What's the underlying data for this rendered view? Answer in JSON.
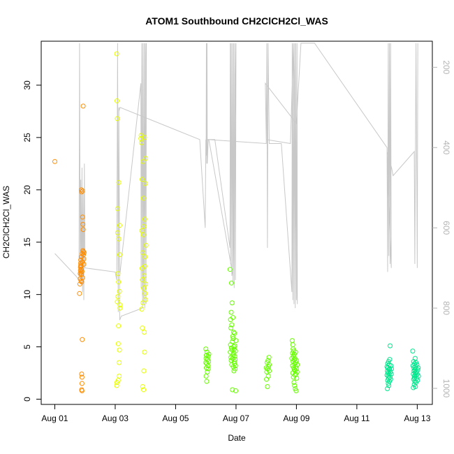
{
  "chart_data": {
    "type": "scatter",
    "title": "ATOM1 Southbound CH2ClCH2Cl_WAS",
    "xlabel": "Date",
    "ylabel": "CH2ClCH2Cl_WAS",
    "x_tick_labels": [
      "Aug 01",
      "Aug 03",
      "Aug 05",
      "Aug 07",
      "Aug 09",
      "Aug 11",
      "Aug 13"
    ],
    "x_tick_values": [
      1,
      3,
      5,
      7,
      9,
      11,
      13
    ],
    "xlim": [
      0.55,
      13.5
    ],
    "ylim": [
      -0.5,
      34.2
    ],
    "y_ticks": [
      0,
      5,
      10,
      15,
      20,
      25,
      30
    ],
    "y2_axis": {
      "ticks": [
        200,
        400,
        600,
        800,
        1000
      ],
      "lim": [
        1040,
        135
      ],
      "color": "#b4b4b4"
    },
    "series": [
      {
        "color": "#ff8c00",
        "x": [
          1.0,
          1.82,
          1.83,
          1.84,
          1.84,
          1.85,
          1.85,
          1.86,
          1.86,
          1.86,
          1.87,
          1.87,
          1.87,
          1.88,
          1.88,
          1.88,
          1.88,
          1.89,
          1.89,
          1.89,
          1.89,
          1.9,
          1.9,
          1.9,
          1.9,
          1.91,
          1.91,
          1.91,
          1.92,
          1.92,
          1.92,
          1.93,
          1.93,
          1.94,
          1.94,
          1.95,
          1.95,
          1.96,
          1.96,
          1.97
        ],
        "y": [
          22.7,
          10.1,
          11.0,
          11.5,
          12.0,
          12.3,
          12.6,
          12.8,
          13.0,
          13.3,
          11.3,
          12.1,
          12.7,
          11.9,
          12.4,
          13.6,
          20.0,
          0.9,
          2.4,
          19.8,
          11.2,
          0.8,
          1.5,
          2.1,
          12.2,
          13.1,
          13.9,
          5.7,
          17.4,
          19.9,
          11.6,
          14.2,
          16.7,
          16.2,
          28.0,
          13.8,
          14.1,
          12.9,
          13.4,
          14.0
        ]
      },
      {
        "color": "#e6ff00",
        "x": [
          3.05,
          3.05,
          3.06,
          3.06,
          3.07,
          3.07,
          3.08,
          3.08,
          3.09,
          3.09,
          3.1,
          3.1,
          3.11,
          3.11,
          3.12,
          3.12,
          3.13,
          3.13,
          3.14,
          3.14,
          3.15,
          3.15,
          3.16,
          3.16,
          3.85,
          3.86,
          3.87,
          3.88,
          3.88,
          3.89,
          3.89,
          3.9,
          3.9,
          3.91,
          3.91,
          3.92,
          3.92,
          3.93,
          3.93,
          3.94,
          3.94,
          3.95,
          3.95,
          3.96,
          3.96,
          3.97,
          3.97,
          3.98,
          3.98,
          3.99,
          3.99,
          4.0,
          4.0,
          4.01,
          4.01,
          4.02
        ],
        "y": [
          33.0,
          1.3,
          28.5,
          1.6,
          26.8,
          9.3,
          15.9,
          18.2,
          9.8,
          12.0,
          1.8,
          5.3,
          7.0,
          11.2,
          15.3,
          20.7,
          2.2,
          3.5,
          4.7,
          10.3,
          13.8,
          16.6,
          9.0,
          8.7,
          24.9,
          25.2,
          24.5,
          8.6,
          16.1,
          21.0,
          12.5,
          6.8,
          11.4,
          1.2,
          14.0,
          22.7,
          9.2,
          15.7,
          19.2,
          0.9,
          10.6,
          2.7,
          16.5,
          6.4,
          11.8,
          25.0,
          4.5,
          17.2,
          12.7,
          10.1,
          13.6,
          9.5,
          20.6,
          23.0,
          11.0,
          14.7
        ]
      },
      {
        "color": "#66ff00",
        "x": [
          6.0,
          6.0,
          6.01,
          6.01,
          6.02,
          6.02,
          6.03,
          6.03,
          6.04,
          6.05,
          6.06,
          6.07,
          6.08,
          6.08,
          6.09,
          6.1,
          6.8,
          6.81,
          6.82,
          6.82,
          6.83,
          6.83,
          6.84,
          6.84,
          6.85,
          6.85,
          6.86,
          6.86,
          6.87,
          6.87,
          6.88,
          6.88,
          6.89,
          6.89,
          6.9,
          6.9,
          6.91,
          6.91,
          6.92,
          6.92,
          6.93,
          6.93,
          6.94,
          6.94,
          6.95,
          6.95,
          6.96,
          6.96,
          6.97,
          6.97,
          6.98,
          6.98,
          6.99,
          7.0,
          8.0,
          8.01,
          8.02,
          8.03,
          8.04,
          8.05,
          8.06,
          8.07,
          8.08,
          8.09,
          8.1,
          8.1,
          8.85,
          8.86,
          8.87,
          8.87,
          8.88,
          8.88,
          8.89,
          8.89,
          8.9,
          8.9,
          8.91,
          8.91,
          8.92,
          8.92,
          8.93,
          8.93,
          8.94,
          8.94,
          8.95,
          8.95,
          8.96,
          8.96,
          8.97,
          8.97,
          8.98,
          8.98,
          8.99,
          9.0,
          9.0,
          9.01,
          9.02,
          9.03
        ],
        "y": [
          4.8,
          3.5,
          2.2,
          3.9,
          4.2,
          3.0,
          1.7,
          3.4,
          4.5,
          2.6,
          3.8,
          3.2,
          4.1,
          2.9,
          3.6,
          4.3,
          12.4,
          4.5,
          7.6,
          5.2,
          6.8,
          4.0,
          8.3,
          3.7,
          11.1,
          4.9,
          7.1,
          3.3,
          9.2,
          4.7,
          0.9,
          5.5,
          6.0,
          3.9,
          7.8,
          4.2,
          5.8,
          3.1,
          6.4,
          4.4,
          2.7,
          5.0,
          3.6,
          4.8,
          6.3,
          3.4,
          5.1,
          4.1,
          2.9,
          3.8,
          4.6,
          3.2,
          0.8,
          5.6,
          3.0,
          1.9,
          2.6,
          3.5,
          1.2,
          2.9,
          3.7,
          2.2,
          3.1,
          4.0,
          2.7,
          3.3,
          3.9,
          5.6,
          4.4,
          3.2,
          5.2,
          2.5,
          4.8,
          3.6,
          4.1,
          2.1,
          3.0,
          4.6,
          1.6,
          3.8,
          2.8,
          4.3,
          1.3,
          3.4,
          2.3,
          3.9,
          1.0,
          2.7,
          3.1,
          4.5,
          2.4,
          3.5,
          0.8,
          2.9,
          3.7,
          2.0,
          2.6,
          3.3
        ]
      },
      {
        "color": "#00e68c",
        "x": [
          12.0,
          12.0,
          12.01,
          12.01,
          12.02,
          12.02,
          12.03,
          12.03,
          12.04,
          12.04,
          12.05,
          12.05,
          12.06,
          12.06,
          12.07,
          12.07,
          12.08,
          12.08,
          12.09,
          12.1,
          12.1,
          12.11,
          12.12,
          12.13,
          12.14,
          12.15,
          12.85,
          12.86,
          12.87,
          12.87,
          12.88,
          12.88,
          12.89,
          12.89,
          12.9,
          12.9,
          12.91,
          12.91,
          12.92,
          12.92,
          12.93,
          12.93,
          12.94,
          12.94,
          12.95,
          12.95,
          12.96,
          12.96,
          12.97,
          12.98,
          12.99,
          13.0,
          13.01,
          13.02,
          13.03,
          13.04
        ],
        "y": [
          2.3,
          3.1,
          1.0,
          2.7,
          3.4,
          1.8,
          2.5,
          3.0,
          1.5,
          2.2,
          3.6,
          2.0,
          2.8,
          1.3,
          3.3,
          2.4,
          2.9,
          1.7,
          3.8,
          2.1,
          5.1,
          2.6,
          1.9,
          3.2,
          2.4,
          2.9,
          4.6,
          3.2,
          1.1,
          2.4,
          3.6,
          1.9,
          2.7,
          3.0,
          1.4,
          2.2,
          3.4,
          2.0,
          2.8,
          1.7,
          3.9,
          2.5,
          1.2,
          3.1,
          2.3,
          2.9,
          1.6,
          3.5,
          2.6,
          2.0,
          3.3,
          2.4,
          1.8,
          2.8,
          3.0,
          2.2
        ]
      }
    ],
    "altitude_line": {
      "color": "#c8c8c8",
      "x": [
        1.0,
        1.7,
        1.8,
        1.82,
        1.84,
        1.86,
        1.88,
        1.9,
        1.92,
        1.94,
        1.96,
        1.98,
        2.0,
        3.0,
        3.05,
        3.08,
        3.1,
        3.12,
        3.15,
        3.85,
        3.86,
        3.88,
        3.9,
        3.92,
        3.94,
        3.96,
        3.98,
        4.0,
        4.02,
        4.03,
        3.9,
        3.2,
        3.15,
        3.12,
        3.16,
        5.8,
        5.98,
        6.0,
        6.01,
        6.02,
        6.03,
        6.04,
        6.05,
        6.08,
        6.3,
        6.8,
        6.81,
        6.82,
        6.84,
        6.86,
        6.88,
        6.9,
        6.92,
        6.94,
        6.96,
        6.98,
        7.0,
        6.9,
        6.1,
        6.05,
        8.0,
        8.02,
        8.04,
        8.06,
        8.1,
        8.5,
        8.85,
        8.86,
        8.88,
        8.9,
        8.92,
        8.94,
        8.96,
        8.98,
        9.0,
        9.02,
        9.03,
        8.9,
        8.8,
        8.0,
        7.97,
        9.0,
        9.15,
        9.6,
        12.0,
        12.02,
        12.04,
        12.06,
        12.08,
        12.1,
        12.12,
        12.14,
        12.0,
        12.15,
        12.2,
        12.9,
        12.92,
        12.96,
        13.0,
        13.02
      ],
      "y": [
        664,
        720,
        730,
        140,
        720,
        480,
        740,
        450,
        760,
        510,
        780,
        440,
        700,
        710,
        730,
        140,
        810,
        300,
        720,
        240,
        750,
        140,
        770,
        140,
        790,
        140,
        800,
        140,
        790,
        140,
        800,
        820,
        830,
        310,
        300,
        380,
        600,
        380,
        420,
        140,
        440,
        140,
        440,
        380,
        380,
        650,
        140,
        690,
        140,
        720,
        140,
        740,
        140,
        750,
        140,
        730,
        140,
        720,
        380,
        380,
        390,
        140,
        650,
        140,
        390,
        390,
        760,
        140,
        780,
        140,
        790,
        140,
        800,
        140,
        780,
        140,
        790,
        140,
        390,
        380,
        240,
        340,
        140,
        140,
        400,
        710,
        140,
        670,
        140,
        690,
        140,
        700,
        410,
        450,
        470,
        410,
        690,
        140,
        700,
        140
      ]
    }
  }
}
